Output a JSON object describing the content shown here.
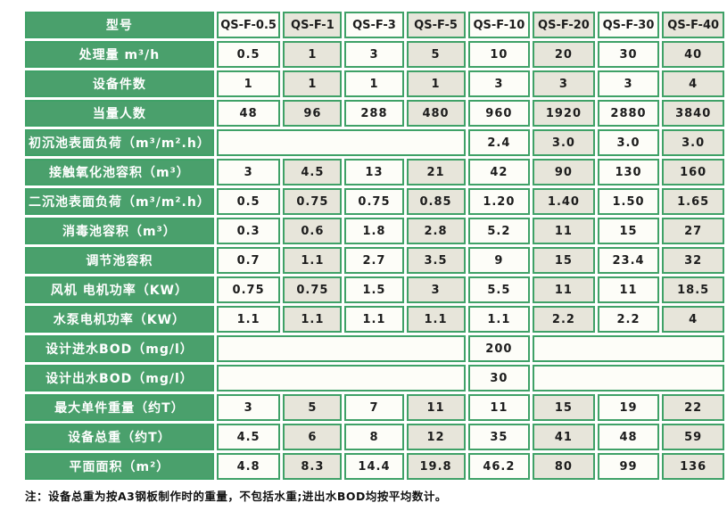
{
  "colors": {
    "label_cell_green": "#4aa06c",
    "grid_border_green": "#3fa167",
    "cell_white": "#fdfdf8",
    "cell_beige": "#e7e5da",
    "label_text": "#ffffff",
    "value_text": "#1c1c1c"
  },
  "table": {
    "corner_label": "型号",
    "models": [
      "QS-F-0.5",
      "QS-F-1",
      "QS-F-3",
      "QS-F-5",
      "QS-F-10",
      "QS-F-20",
      "QS-F-30",
      "QS-F-40"
    ],
    "rows": [
      {
        "label": "处理量 m³/h",
        "cells": [
          {
            "t": "0.5"
          },
          {
            "t": "1"
          },
          {
            "t": "3"
          },
          {
            "t": "5"
          },
          {
            "t": "10"
          },
          {
            "t": "20"
          },
          {
            "t": "30"
          },
          {
            "t": "40"
          }
        ]
      },
      {
        "label": "设备件数",
        "cells": [
          {
            "t": "1"
          },
          {
            "t": "1"
          },
          {
            "t": "1"
          },
          {
            "t": "1"
          },
          {
            "t": "3"
          },
          {
            "t": "3"
          },
          {
            "t": "3"
          },
          {
            "t": "4"
          }
        ]
      },
      {
        "label": "当量人数",
        "cells": [
          {
            "t": "48"
          },
          {
            "t": "96"
          },
          {
            "t": "288"
          },
          {
            "t": "480"
          },
          {
            "t": "960"
          },
          {
            "t": "1920"
          },
          {
            "t": "2880"
          },
          {
            "t": "3840"
          }
        ]
      },
      {
        "label": "初沉池表面负荷（m³/m².h）",
        "cells": [
          {
            "t": "",
            "span": 4
          },
          {
            "t": "2.4"
          },
          {
            "t": "3.0"
          },
          {
            "t": "3.0"
          },
          {
            "t": "3.0"
          }
        ]
      },
      {
        "label": "接触氧化池容积（m³）",
        "cells": [
          {
            "t": "3"
          },
          {
            "t": "4.5"
          },
          {
            "t": "13"
          },
          {
            "t": "21"
          },
          {
            "t": "42"
          },
          {
            "t": "90"
          },
          {
            "t": "130"
          },
          {
            "t": "160"
          }
        ]
      },
      {
        "label": "二沉池表面负荷（m³/m².h）",
        "cells": [
          {
            "t": "0.5"
          },
          {
            "t": "0.75"
          },
          {
            "t": "0.75"
          },
          {
            "t": "0.85"
          },
          {
            "t": "1.20"
          },
          {
            "t": "1.40"
          },
          {
            "t": "1.50"
          },
          {
            "t": "1.65"
          }
        ]
      },
      {
        "label": "消毒池容积（m³）",
        "cells": [
          {
            "t": "0.3"
          },
          {
            "t": "0.6"
          },
          {
            "t": "1.8"
          },
          {
            "t": "2.8"
          },
          {
            "t": "5.2"
          },
          {
            "t": "11"
          },
          {
            "t": "15"
          },
          {
            "t": "27"
          }
        ]
      },
      {
        "label": "调节池容积",
        "cells": [
          {
            "t": "0.7"
          },
          {
            "t": "1.1"
          },
          {
            "t": "2.7"
          },
          {
            "t": "3.5"
          },
          {
            "t": "9"
          },
          {
            "t": "15"
          },
          {
            "t": "23.4"
          },
          {
            "t": "32"
          }
        ]
      },
      {
        "label": "风机 电机功率（KW）",
        "cells": [
          {
            "t": "0.75"
          },
          {
            "t": "0.75"
          },
          {
            "t": "1.5"
          },
          {
            "t": "3"
          },
          {
            "t": "5.5"
          },
          {
            "t": "11"
          },
          {
            "t": "11"
          },
          {
            "t": "18.5"
          }
        ]
      },
      {
        "label": "水泵电机功率（KW）",
        "cells": [
          {
            "t": "1.1"
          },
          {
            "t": "1.1"
          },
          {
            "t": "1.1"
          },
          {
            "t": "1.1"
          },
          {
            "t": "1.1"
          },
          {
            "t": "2.2"
          },
          {
            "t": "2.2"
          },
          {
            "t": "4"
          }
        ]
      },
      {
        "label": "设计进水BOD（mg/l）",
        "cells": [
          {
            "t": "",
            "span": 4
          },
          {
            "t": "200"
          },
          {
            "t": "",
            "span": 3
          }
        ]
      },
      {
        "label": "设计出水BOD（mg/l）",
        "cells": [
          {
            "t": "",
            "span": 4
          },
          {
            "t": "30"
          },
          {
            "t": "",
            "span": 3
          }
        ]
      },
      {
        "label": "最大单件重量（约T）",
        "cells": [
          {
            "t": "3"
          },
          {
            "t": "5"
          },
          {
            "t": "7"
          },
          {
            "t": "11"
          },
          {
            "t": "11"
          },
          {
            "t": "15"
          },
          {
            "t": "19"
          },
          {
            "t": "22"
          }
        ]
      },
      {
        "label": "设备总重（约T）",
        "cells": [
          {
            "t": "4.5"
          },
          {
            "t": "6"
          },
          {
            "t": "8"
          },
          {
            "t": "12"
          },
          {
            "t": "35"
          },
          {
            "t": "41"
          },
          {
            "t": "48"
          },
          {
            "t": "59"
          }
        ]
      },
      {
        "label": "平面面积（m²）",
        "cells": [
          {
            "t": "4.8"
          },
          {
            "t": "8.3"
          },
          {
            "t": "14.4"
          },
          {
            "t": "19.8"
          },
          {
            "t": "46.2"
          },
          {
            "t": "80"
          },
          {
            "t": "99"
          },
          {
            "t": "136"
          }
        ]
      }
    ],
    "footnote": "注：设备总重为按A3钢板制作时的重量，不包括水重;进出水BOD均按平均数计。"
  }
}
